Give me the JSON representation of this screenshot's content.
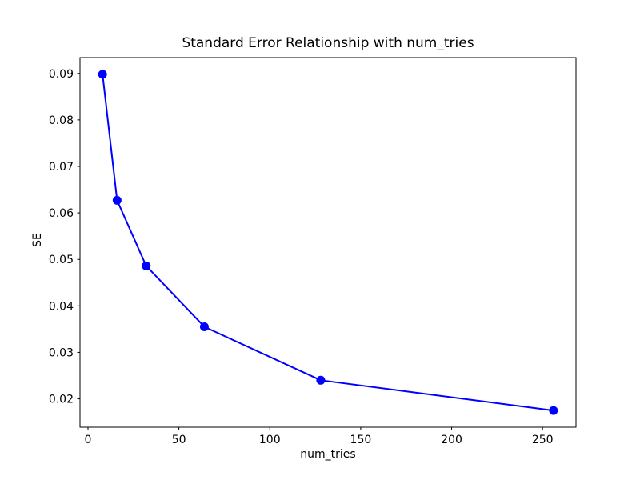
{
  "chart_data": {
    "type": "line",
    "title": "Standard Error Relationship with num_tries",
    "xlabel": "num_tries",
    "ylabel": "SE",
    "x": [
      8,
      16,
      32,
      64,
      128,
      256
    ],
    "series": [
      {
        "name": "SE",
        "values": [
          0.0898,
          0.0627,
          0.0486,
          0.0355,
          0.024,
          0.0175
        ]
      }
    ],
    "line_color": "#0000ff",
    "marker": "o",
    "marker_color": "#0000ff",
    "xlim": [
      -4.4,
      268.4
    ],
    "ylim": [
      0.0139,
      0.0934
    ],
    "xticks": {
      "values": [
        0,
        50,
        100,
        150,
        200,
        250
      ],
      "labels": [
        "0",
        "50",
        "100",
        "150",
        "200",
        "250"
      ]
    },
    "yticks": {
      "values": [
        0.02,
        0.03,
        0.04,
        0.05,
        0.06,
        0.07,
        0.08,
        0.09
      ],
      "labels": [
        "0.02",
        "0.03",
        "0.04",
        "0.05",
        "0.06",
        "0.07",
        "0.08",
        "0.09"
      ]
    },
    "grid": false,
    "legend": false,
    "axis_color": "#000000",
    "background_color": "#ffffff"
  }
}
